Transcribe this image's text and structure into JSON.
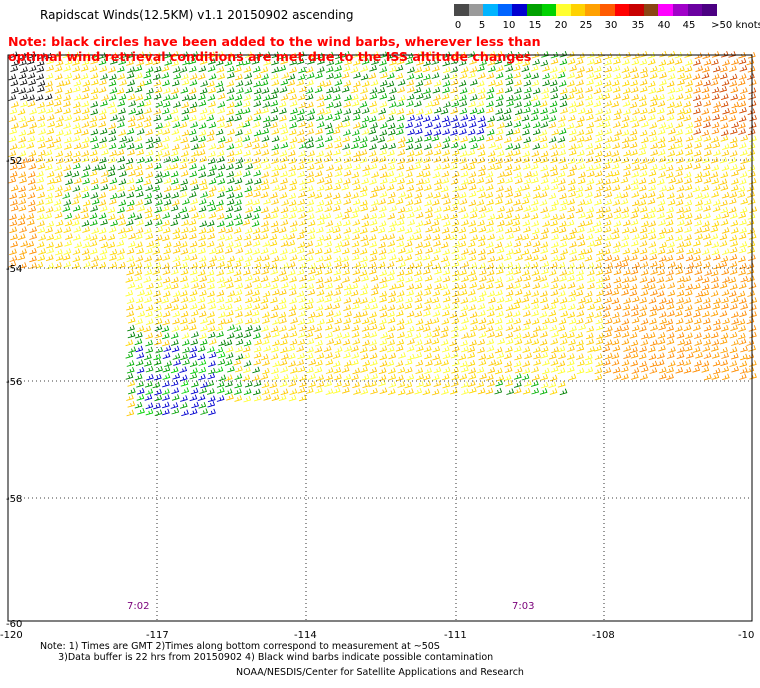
{
  "title": "Rapidscat Winds(12.5KM) v1.1 20150902 ascending",
  "legend": {
    "bins": [
      {
        "label": "0",
        "color": "#4a4a4a"
      },
      {
        "label": "",
        "color": "#9a9a9a"
      },
      {
        "label": "5",
        "color": "#00b4ff"
      },
      {
        "label": "",
        "color": "#0064ff"
      },
      {
        "label": "10",
        "color": "#0000d0"
      },
      {
        "label": "",
        "color": "#00a000"
      },
      {
        "label": "15",
        "color": "#00d200"
      },
      {
        "label": "",
        "color": "#ffff30"
      },
      {
        "label": "20",
        "color": "#ffd200"
      },
      {
        "label": "",
        "color": "#ffa000"
      },
      {
        "label": "25",
        "color": "#ff5a00"
      },
      {
        "label": "",
        "color": "#ff0000"
      },
      {
        "label": "30",
        "color": "#c80000"
      },
      {
        "label": "",
        "color": "#8b4513"
      },
      {
        "label": "35",
        "color": "#ff00ff"
      },
      {
        "label": "",
        "color": "#a000c8"
      },
      {
        "label": "40",
        "color": "#6a00a0"
      },
      {
        "label": "45",
        "color": "#4b0082"
      }
    ],
    "labels": [
      "0",
      "5",
      "10",
      "15",
      "20",
      "25",
      "30",
      "35",
      "40",
      "45",
      ">50 knots"
    ]
  },
  "note_red": [
    "Note: black circles have been added to the wind barbs, wherever less than",
    "   optimal wind retrieval conditions are met due to the ISS altitude changes"
  ],
  "map": {
    "lat_labels": [
      "-52",
      "-54",
      "-56",
      "-58",
      "-60"
    ],
    "lon_labels": [
      "-120",
      "-117",
      "-114",
      "-111",
      "-108",
      "-10"
    ],
    "time_labels": [
      "7:02",
      "7:03"
    ]
  },
  "footer_notes": "Note: 1) Times are GMT 2)Times along bottom correspond to measurement at ~50S\n      3)Data buffer is 22 hrs from 20150902 4) Black wind barbs indicate possible contamination",
  "credit": "NOAA/NESDIS/Center for Satellite Applications and Research"
}
